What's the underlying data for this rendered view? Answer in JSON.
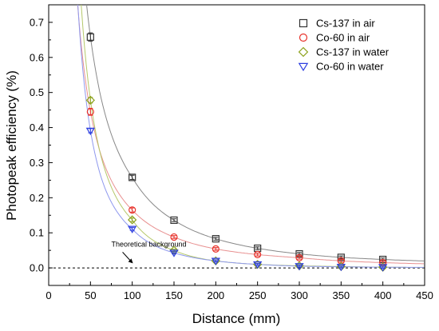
{
  "chart_data": {
    "type": "scatter",
    "xlabel": "Distance (mm)",
    "ylabel": "Photopeak efficiency (%)",
    "xlim": [
      0,
      450
    ],
    "ylim": [
      -0.05,
      0.75
    ],
    "xticks": [
      0,
      50,
      100,
      150,
      200,
      250,
      300,
      350,
      400,
      450
    ],
    "yticks": [
      0.0,
      0.1,
      0.2,
      0.3,
      0.4,
      0.5,
      0.6,
      0.7
    ],
    "grid": false,
    "legend": "top-right",
    "annotations": [
      {
        "text": "Theoretical background",
        "x": 98,
        "y": 0.013
      }
    ],
    "baseline": {
      "y": 0.0,
      "style": "dashed"
    },
    "series": [
      {
        "name": "Cs-137 in air",
        "marker": "square",
        "color": "#333333",
        "fit_color": "#888888",
        "x": [
          50,
          100,
          150,
          200,
          250,
          300,
          350,
          400
        ],
        "y": [
          0.658,
          0.258,
          0.136,
          0.083,
          0.056,
          0.04,
          0.03,
          0.024
        ],
        "err": [
          0.012,
          0.006,
          0.004,
          0.004,
          0.004,
          0.004,
          0.004,
          0.004
        ]
      },
      {
        "name": "Co-60 in air",
        "marker": "circle",
        "color": "#e8322b",
        "fit_color": "#e89090",
        "x": [
          50,
          100,
          150,
          200,
          250,
          300,
          350,
          400
        ],
        "y": [
          0.445,
          0.165,
          0.088,
          0.054,
          0.038,
          0.029,
          0.02,
          0.015
        ],
        "err": [
          0.01,
          0.006,
          0.004,
          0.004,
          0.004,
          0.004,
          0.004,
          0.004
        ]
      },
      {
        "name": "Cs-137 in water",
        "marker": "diamond",
        "color": "#8ca21c",
        "fit_color": "#b5c86a",
        "x": [
          50,
          100,
          150,
          200,
          250,
          300,
          350,
          400
        ],
        "y": [
          0.478,
          0.137,
          0.05,
          0.02,
          0.01,
          0.006,
          0.004,
          0.002
        ],
        "err": [
          0.008,
          0.005,
          0.003,
          0.003,
          0.003,
          0.003,
          0.003,
          0.003
        ]
      },
      {
        "name": "Co-60 in water",
        "marker": "triangle-down",
        "color": "#2d3ee0",
        "fit_color": "#8e98ee",
        "x": [
          50,
          100,
          150,
          200,
          250,
          300,
          350,
          400
        ],
        "y": [
          0.391,
          0.111,
          0.043,
          0.02,
          0.01,
          0.005,
          0.003,
          0.002
        ],
        "err": [
          0.006,
          0.004,
          0.003,
          0.003,
          0.003,
          0.003,
          0.003,
          0.003
        ]
      }
    ]
  }
}
